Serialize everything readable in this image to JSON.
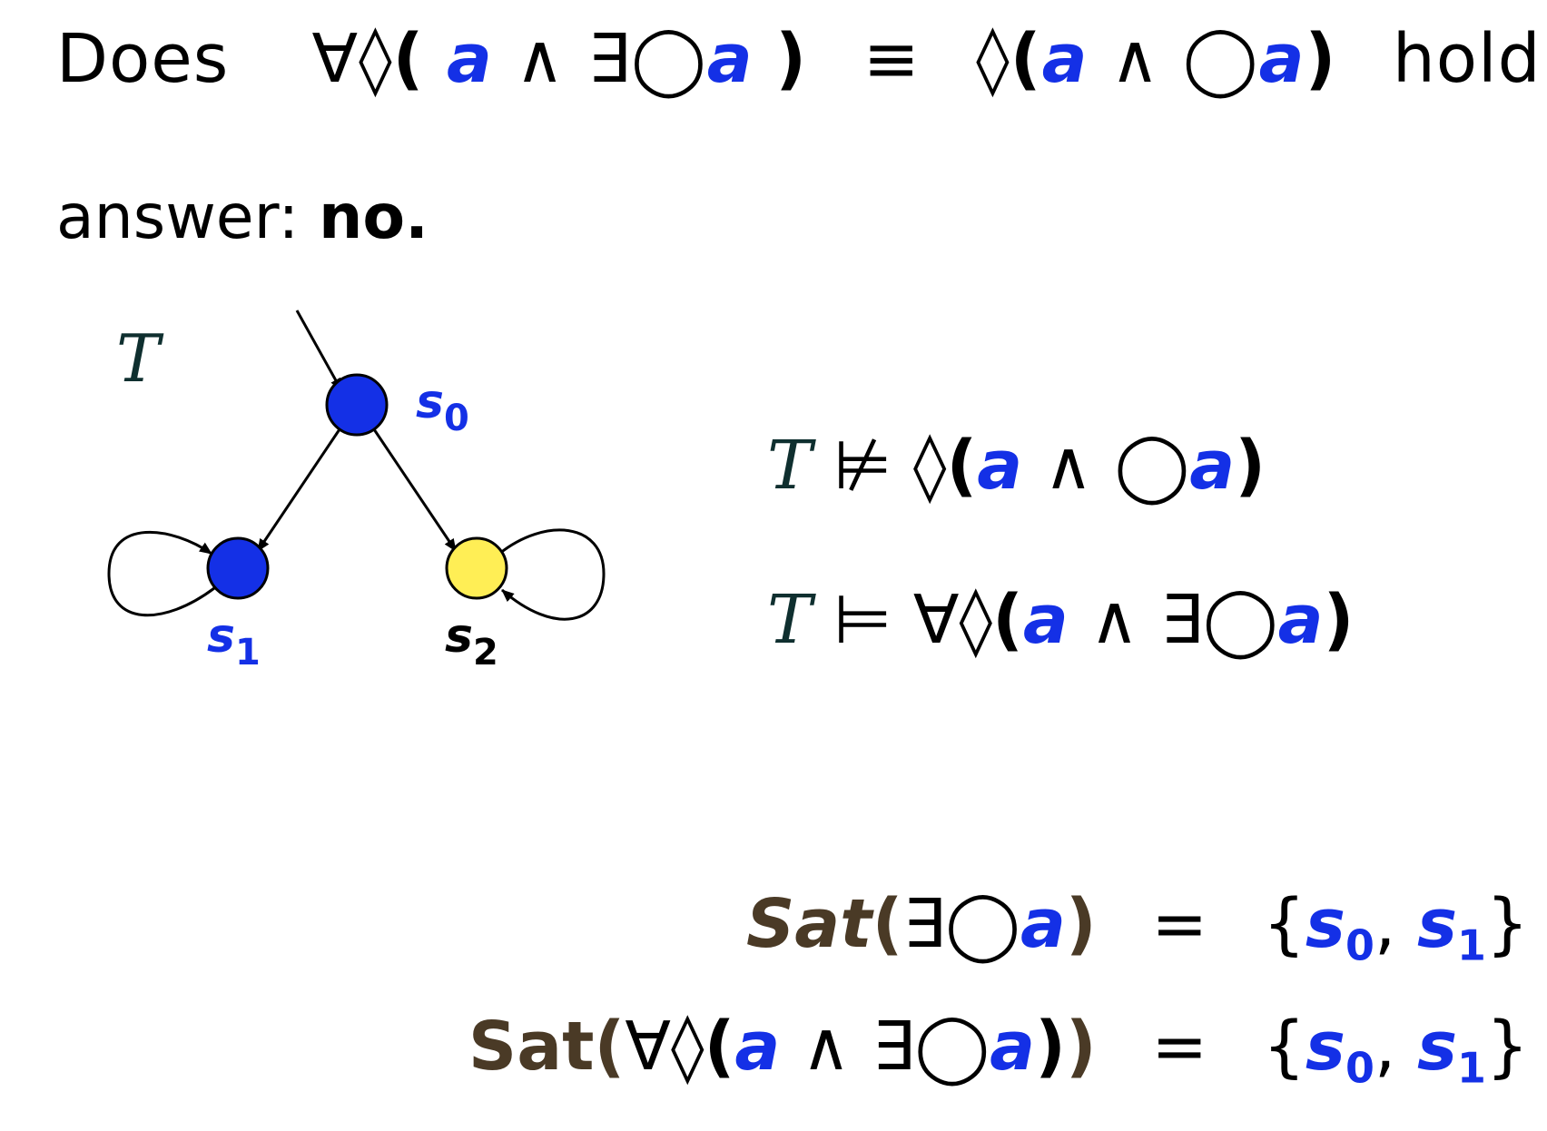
{
  "headline": {
    "does": "Does",
    "lhs_quant": "∀◊",
    "a": "a",
    "and": "∧",
    "exists_next": "∃◯",
    "equiv": "≡",
    "rhs_event": "◊",
    "next": "◯",
    "hold": "hold",
    "question": "?"
  },
  "answer": {
    "label": "answer:",
    "value": "no."
  },
  "diagram": {
    "system_label": "T",
    "states": [
      {
        "label": "s",
        "index": "0",
        "color": "#1430e6",
        "label_color": "#1430e6"
      },
      {
        "label": "s",
        "index": "1",
        "color": "#1430e6",
        "label_color": "#1430e6"
      },
      {
        "label": "s",
        "index": "2",
        "color": "#ffee55",
        "label_color": "#000000"
      }
    ]
  },
  "formulas": {
    "system": "T",
    "not_models": "⊭",
    "models": "⊨",
    "f1_body": "◊",
    "f2_body": "∀◊",
    "a": "a",
    "and": "∧",
    "next": "◯",
    "exists_next": "∃◯"
  },
  "sat": {
    "sat_italic": "Sat",
    "sat_upright": "Sat",
    "exists_next": "∃◯",
    "forall_event": "∀◊",
    "a": "a",
    "and": "∧",
    "eq": "=",
    "set_open": "{",
    "set_close": "}",
    "s": "s",
    "i0": "0",
    "i1": "1",
    "comma": ","
  },
  "colors": {
    "prop_blue": "#1430e6",
    "sat_brown": "#4a3a26",
    "system_dark": "#0f2f2f",
    "state_yellow": "#ffee55"
  }
}
